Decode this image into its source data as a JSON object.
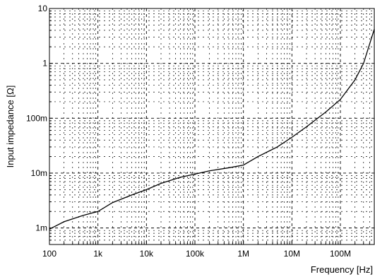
{
  "chart_data": {
    "type": "line",
    "title": "",
    "xlabel": "Frequency [Hz]",
    "ylabel": "Input impedance [Ω]",
    "xscale": "log",
    "yscale": "log",
    "xlim": [
      100,
      500000000
    ],
    "ylim": [
      0.0005,
      10
    ],
    "grid": "dashed, major and minor",
    "legend": "none",
    "line_color": "#000000",
    "x_ticks": [
      {
        "value": 100,
        "label": "100"
      },
      {
        "value": 1000,
        "label": "1k"
      },
      {
        "value": 10000,
        "label": "10k"
      },
      {
        "value": 100000,
        "label": "100k"
      },
      {
        "value": 1000000,
        "label": "1M"
      },
      {
        "value": 10000000,
        "label": "10M"
      },
      {
        "value": 100000000,
        "label": "100M"
      }
    ],
    "y_ticks": [
      {
        "value": 0.001,
        "label": "1m"
      },
      {
        "value": 0.01,
        "label": "10m"
      },
      {
        "value": 0.1,
        "label": "100m"
      },
      {
        "value": 1,
        "label": "1"
      },
      {
        "value": 10,
        "label": "10"
      }
    ],
    "series": [
      {
        "x": [
          100,
          200,
          500,
          1000,
          2000,
          5000,
          10000,
          20000,
          50000,
          100000,
          200000,
          500000,
          1000000,
          2000000,
          5000000,
          10000000,
          20000000,
          50000000,
          100000000,
          200000000,
          300000000,
          500000000
        ],
        "y": [
          0.00095,
          0.0013,
          0.0017,
          0.002,
          0.0029,
          0.004,
          0.005,
          0.0065,
          0.0084,
          0.0096,
          0.011,
          0.0125,
          0.014,
          0.02,
          0.03,
          0.045,
          0.07,
          0.13,
          0.22,
          0.5,
          1.0,
          4.2
        ]
      }
    ]
  }
}
